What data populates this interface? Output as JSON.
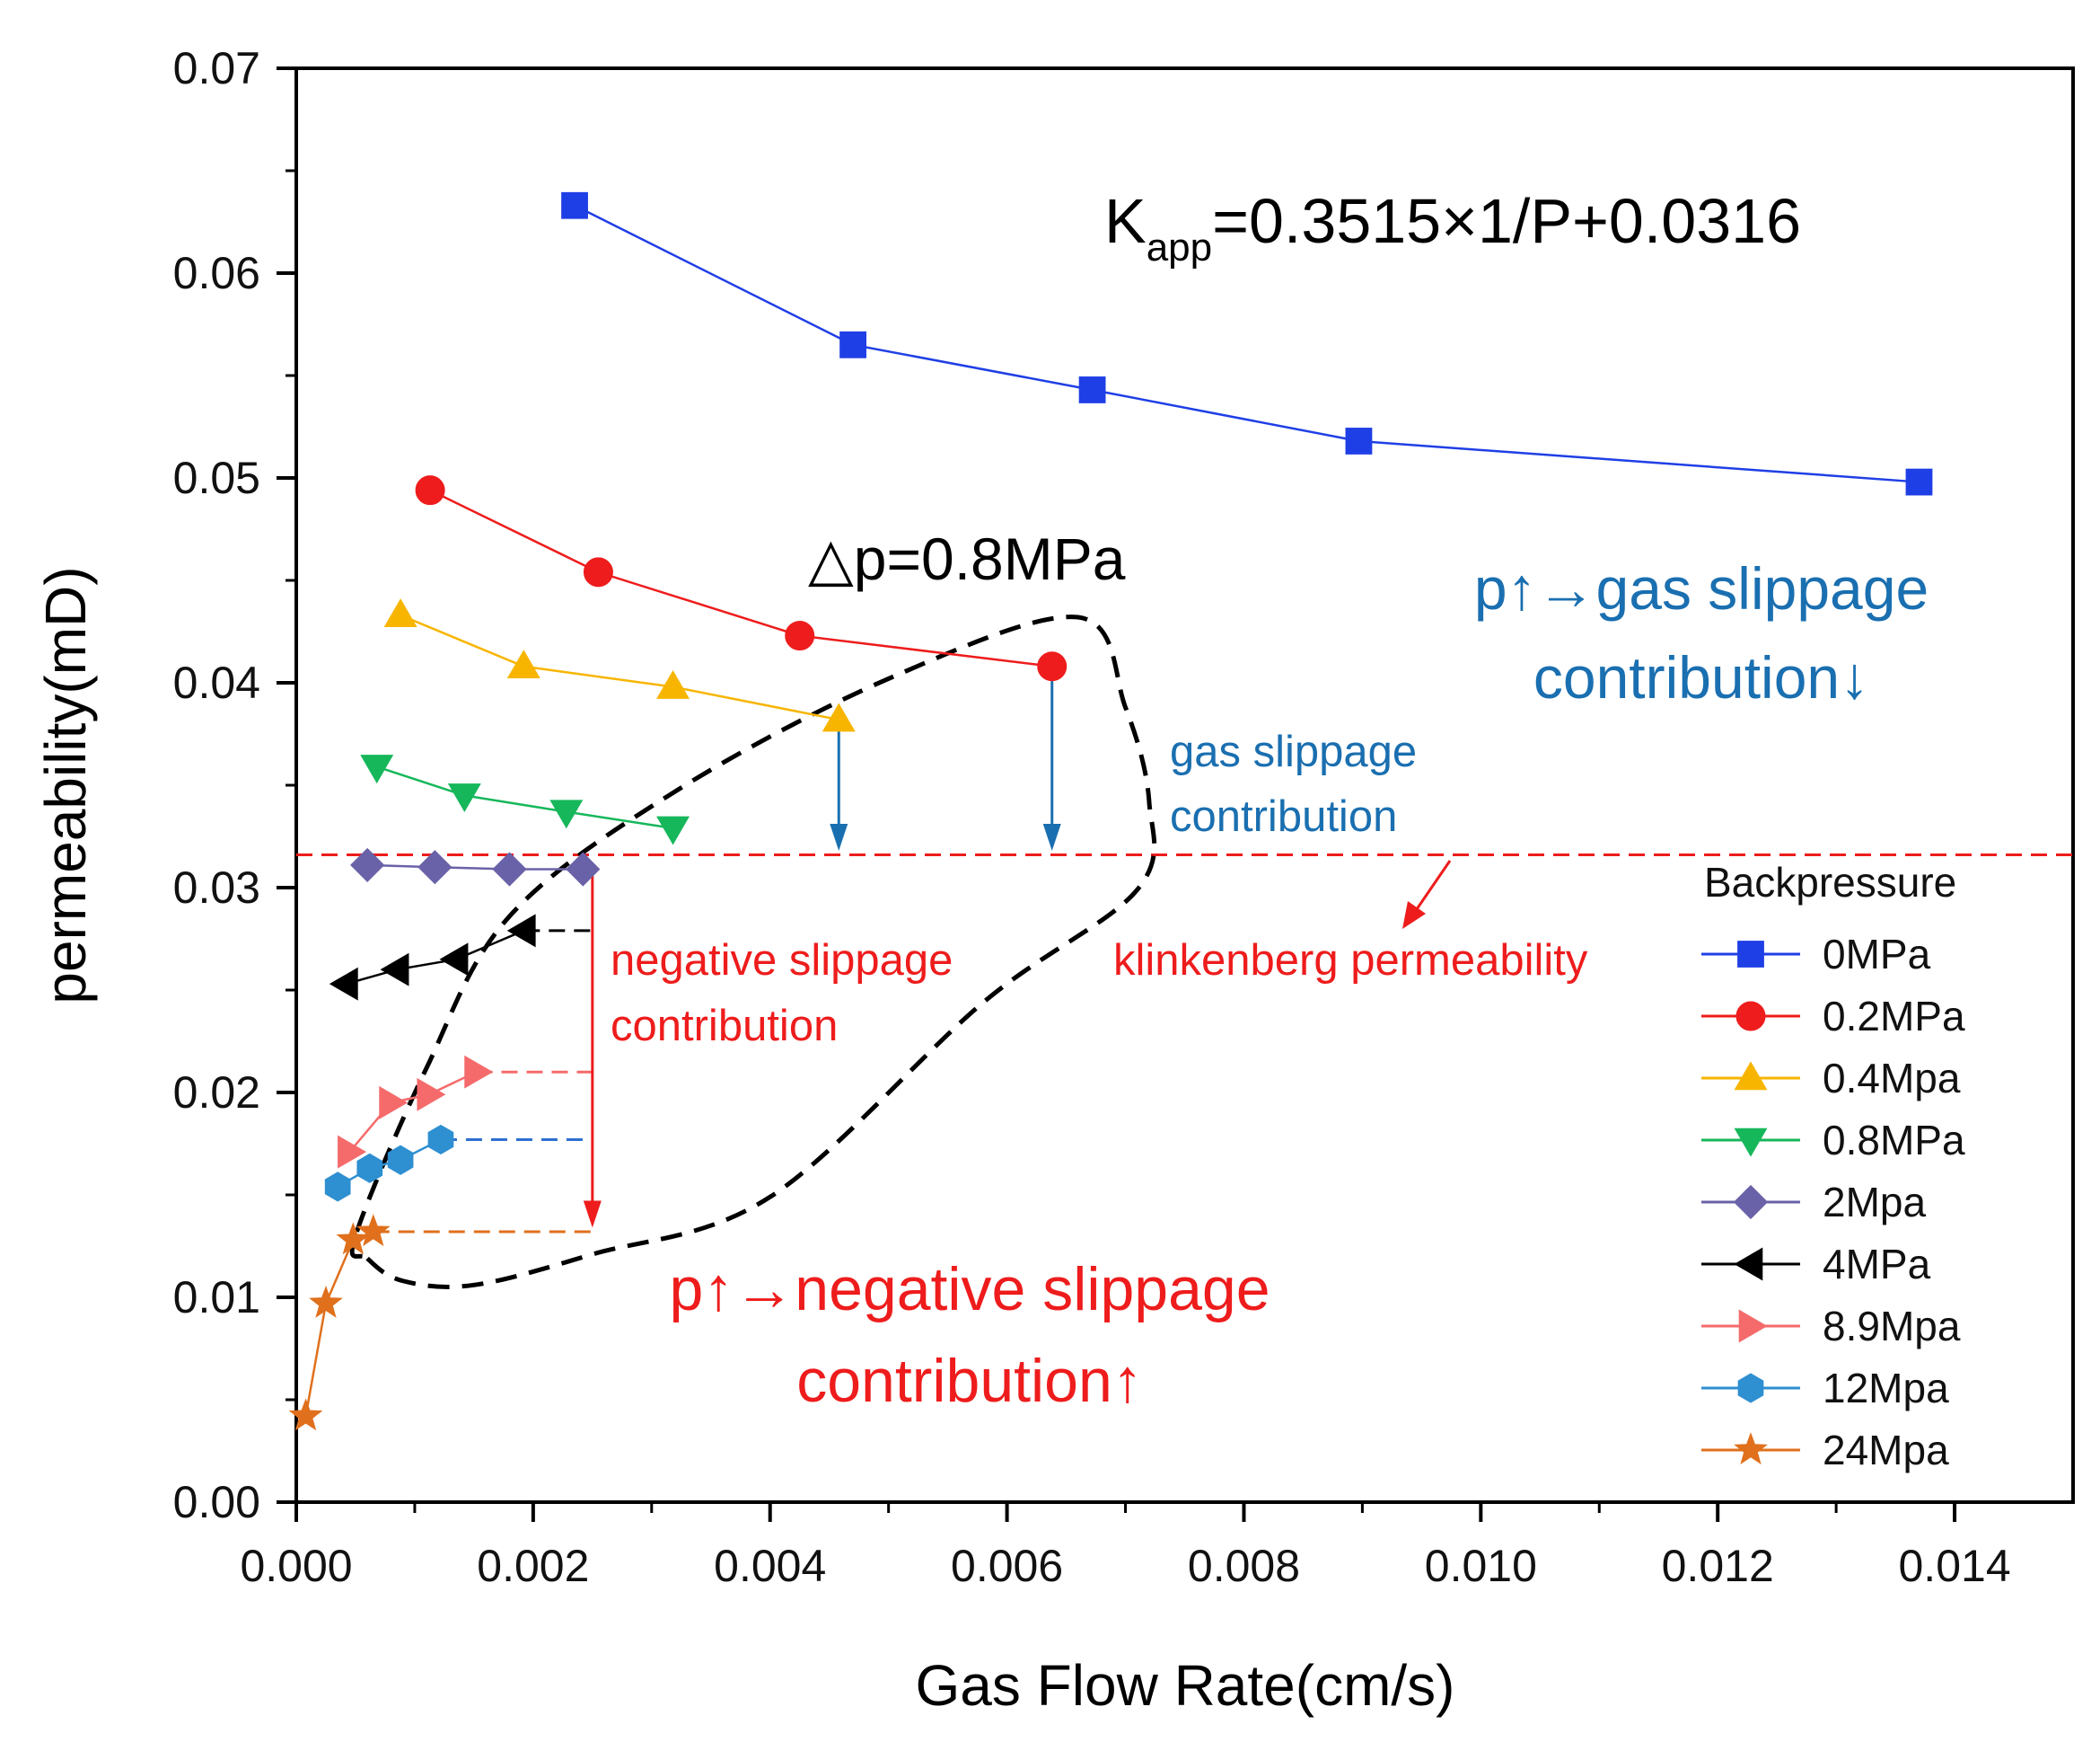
{
  "chart_data": {
    "type": "line",
    "title": "",
    "xlabel": "Gas Flow Rate(cm/s)",
    "ylabel": "permeability(mD)",
    "xlim": [
      0,
      0.015
    ],
    "ylim": [
      0,
      0.07
    ],
    "x_ticks": [
      "0.000",
      "0.002",
      "0.004",
      "0.006",
      "0.008",
      "0.010",
      "0.012",
      "0.014"
    ],
    "y_ticks": [
      "0.00",
      "0.01",
      "0.02",
      "0.03",
      "0.04",
      "0.05",
      "0.06",
      "0.07"
    ],
    "grid": false,
    "legend_title": "Backpressure",
    "legend_position": "right",
    "series": [
      {
        "name": "0MPa",
        "color": "#1f3fe6",
        "marker": "square",
        "x": [
          0.00235,
          0.0047,
          0.00672,
          0.00897,
          0.0137
        ],
        "y": [
          0.0633,
          0.0565,
          0.0543,
          0.0518,
          0.0498
        ]
      },
      {
        "name": "0.2MPa",
        "color": "#ee1c1c",
        "marker": "circle",
        "x": [
          0.00113,
          0.00255,
          0.00425,
          0.00638
        ],
        "y": [
          0.0494,
          0.0454,
          0.0423,
          0.0408
        ]
      },
      {
        "name": "0.4Mpa",
        "color": "#f7b500",
        "marker": "triangle-up",
        "x": [
          0.00088,
          0.00192,
          0.00318,
          0.00458
        ],
        "y": [
          0.0433,
          0.0408,
          0.0398,
          0.0382
        ]
      },
      {
        "name": "0.8MPa",
        "color": "#16b75a",
        "marker": "triangle-down",
        "x": [
          0.00068,
          0.00142,
          0.00228,
          0.00318
        ],
        "y": [
          0.0359,
          0.0345,
          0.0337,
          0.0329
        ]
      },
      {
        "name": "2Mpa",
        "color": "#6a62a8",
        "marker": "diamond",
        "x": [
          0.0006,
          0.00117,
          0.0018,
          0.00242
        ],
        "y": [
          0.0311,
          0.031,
          0.0309,
          0.0309
        ]
      },
      {
        "name": "4MPa",
        "color": "#000000",
        "marker": "triangle-left",
        "x": [
          0.00042,
          0.00085,
          0.00135,
          0.00192
        ],
        "y": [
          0.0253,
          0.026,
          0.0265,
          0.0279
        ]
      },
      {
        "name": "8.9Mpa",
        "color": "#f56b6b",
        "marker": "triangle-right",
        "x": [
          0.00045,
          0.0008,
          0.00112,
          0.00152
        ],
        "y": [
          0.0171,
          0.0195,
          0.0199,
          0.021
        ]
      },
      {
        "name": "12Mpa",
        "color": "#2e8fd1",
        "marker": "hexagon",
        "x": [
          0.00035,
          0.00062,
          0.00088,
          0.00122
        ],
        "y": [
          0.0154,
          0.0163,
          0.0167,
          0.0177
        ]
      },
      {
        "name": "24Mpa",
        "color": "#e0701c",
        "marker": "star",
        "x": [
          8e-05,
          0.00025,
          0.00048,
          0.00065
        ],
        "y": [
          0.0042,
          0.0097,
          0.0128,
          0.0132
        ]
      }
    ],
    "reference_lines": [
      {
        "name": "klinkenberg-permeability-line",
        "y": 0.0316,
        "x_from": 0.0,
        "x_to": 0.015,
        "color": "#ee1c1c",
        "style": "dashed"
      },
      {
        "name": "4mpa-guide-line",
        "y": 0.0279,
        "x_from": 0.00192,
        "x_to": 0.0025,
        "color": "#000000",
        "style": "dashed"
      },
      {
        "name": "8.9mpa-guide-line",
        "y": 0.021,
        "x_from": 0.00152,
        "x_to": 0.0025,
        "color": "#f56b6b",
        "style": "dashed"
      },
      {
        "name": "12mpa-guide-line",
        "y": 0.0177,
        "x_from": 0.00122,
        "x_to": 0.0025,
        "color": "#2e6fd0",
        "style": "dashed"
      },
      {
        "name": "24mpa-guide-line",
        "y": 0.0132,
        "x_from": 0.00065,
        "x_to": 0.0025,
        "color": "#e0701c",
        "style": "dashed"
      }
    ],
    "arrows": [
      {
        "name": "gas-slippage-arrow-0.4mpa",
        "x": 0.00458,
        "y_from": 0.0382,
        "y_to": 0.0318,
        "color": "#1a6fb0"
      },
      {
        "name": "gas-slippage-arrow-0.2mpa",
        "x": 0.00638,
        "y_from": 0.0408,
        "y_to": 0.0318,
        "color": "#1a6fb0"
      },
      {
        "name": "negative-slippage-arrow",
        "x": 0.0025,
        "y_from": 0.0309,
        "y_to": 0.0134,
        "color": "#ee1c1c"
      }
    ],
    "enclosure_curve": {
      "color": "#000000",
      "style": "dashed",
      "points": [
        [
          0.0006,
          0.0119
        ],
        [
          0.0009,
          0.0108
        ],
        [
          0.0015,
          0.0106
        ],
        [
          0.0025,
          0.0121
        ],
        [
          0.004,
          0.0149
        ],
        [
          0.0058,
          0.0244
        ],
        [
          0.0071,
          0.0299
        ],
        [
          0.0072,
          0.0342
        ],
        [
          0.007,
          0.0388
        ],
        [
          0.0066,
          0.0432
        ],
        [
          0.005,
          0.0402
        ],
        [
          0.0032,
          0.0347
        ],
        [
          0.0018,
          0.0286
        ],
        [
          0.0011,
          0.0212
        ],
        [
          0.0005,
          0.013
        ]
      ]
    },
    "annotations": {
      "equation_main": "K",
      "equation_subscript": "app",
      "equation_rest": "=0.3515×1/P+0.0316",
      "delta_p": "△p=0.8MPa",
      "gas_slippage_up_line1": "p↑→gas slippage",
      "gas_slippage_up_line2": "contribution↓",
      "gas_slippage_contribution_line1": "gas slippage",
      "gas_slippage_contribution_line2": "contribution",
      "negative_slippage_line1": "negative slippage",
      "negative_slippage_line2": "contribution",
      "klinkenberg_label": "klinkenberg permeability",
      "negative_slippage_up_line1": "p↑→negative slippage",
      "negative_slippage_up_line2": "contribution↑"
    },
    "annotation_colors": {
      "blue_text": "#1a6fb0",
      "red_text": "#ee1c1c",
      "black_text": "#000000"
    }
  }
}
